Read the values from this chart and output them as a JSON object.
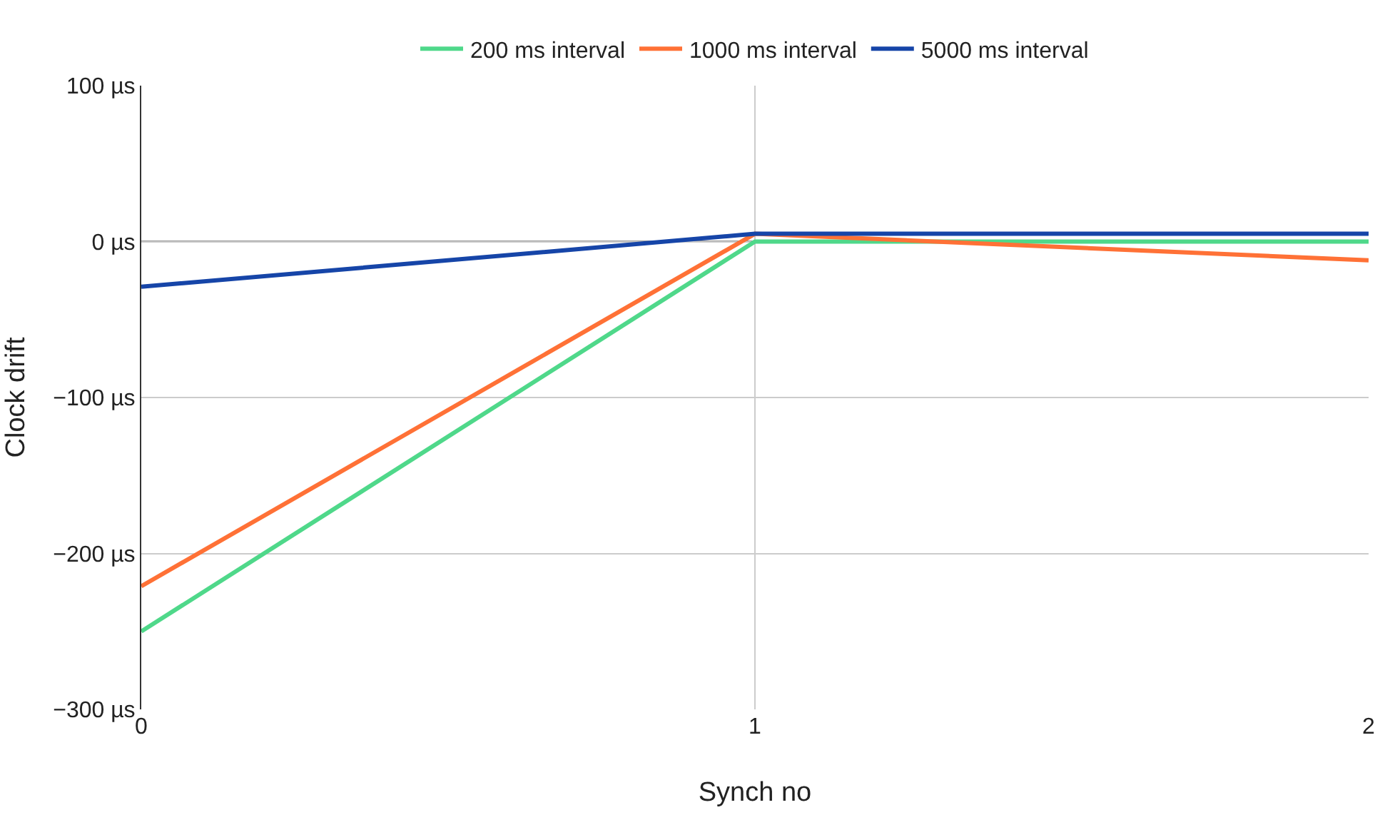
{
  "chart_data": {
    "type": "line",
    "xlabel": "Synch no",
    "ylabel": "Clock drift",
    "x": [
      0,
      1,
      2
    ],
    "series": [
      {
        "name": "200 ms interval",
        "color": "#4fd88a",
        "values": [
          -250,
          0,
          0
        ]
      },
      {
        "name": "1000 ms interval",
        "color": "#ff7136",
        "values": [
          -221,
          5,
          -12
        ]
      },
      {
        "name": "5000 ms interval",
        "color": "#1645a8",
        "values": [
          -29,
          5,
          5
        ]
      }
    ],
    "xlim": [
      0,
      2
    ],
    "xticks": [
      0,
      1,
      2
    ],
    "ylim": [
      -300,
      100
    ],
    "yticks": [
      {
        "value": 100,
        "label": "100 µs"
      },
      {
        "value": 0,
        "label": "0 µs"
      },
      {
        "value": -100,
        "label": "−100 µs"
      },
      {
        "value": -200,
        "label": "−200 µs"
      },
      {
        "value": -300,
        "label": "−300 µs"
      }
    ],
    "ref_lines": [
      {
        "axis": "y",
        "value": 0,
        "label": null,
        "color": "#333333"
      }
    ],
    "grid": true,
    "legend": "top",
    "marker": "none",
    "line_style": "solid"
  }
}
